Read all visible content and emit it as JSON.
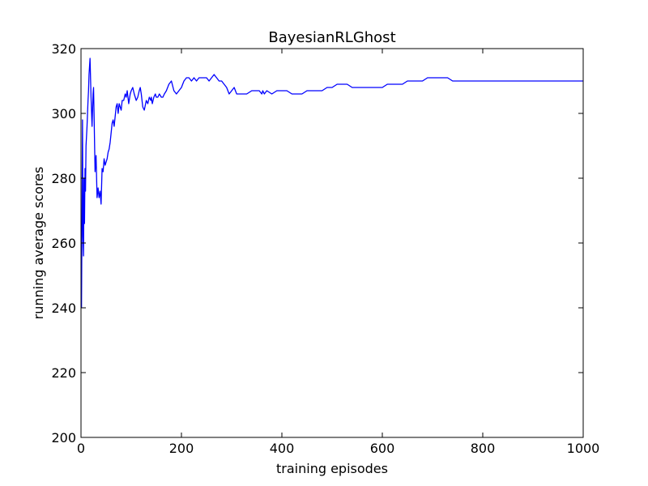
{
  "chart_data": {
    "type": "line",
    "title": "BayesianRLGhost",
    "xlabel": "training episodes",
    "ylabel": "running average scores",
    "xlim": [
      0,
      1000
    ],
    "ylim": [
      200,
      320
    ],
    "xticks": [
      0,
      200,
      400,
      600,
      800,
      1000
    ],
    "yticks": [
      200,
      220,
      240,
      260,
      280,
      300,
      320
    ],
    "grid": false,
    "legend": "none",
    "series": [
      {
        "color": "#0000ff",
        "x": [
          1,
          2,
          3,
          4,
          5,
          6,
          7,
          8,
          9,
          10,
          12,
          14,
          15,
          16,
          18,
          20,
          22,
          24,
          25,
          26,
          28,
          30,
          32,
          34,
          36,
          38,
          40,
          42,
          44,
          46,
          48,
          50,
          52,
          54,
          56,
          58,
          60,
          62,
          64,
          66,
          68,
          70,
          72,
          74,
          76,
          78,
          80,
          82,
          85,
          88,
          90,
          92,
          95,
          98,
          100,
          103,
          106,
          110,
          113,
          116,
          118,
          120,
          123,
          126,
          130,
          133,
          136,
          139,
          140,
          142,
          145,
          148,
          150,
          153,
          156,
          160,
          163,
          166,
          170,
          175,
          180,
          185,
          190,
          195,
          200,
          205,
          210,
          215,
          220,
          225,
          230,
          235,
          240,
          245,
          250,
          255,
          260,
          265,
          270,
          275,
          280,
          285,
          290,
          295,
          300,
          305,
          310,
          315,
          320,
          325,
          330,
          340,
          350,
          355,
          360,
          362,
          365,
          370,
          380,
          390,
          400,
          410,
          420,
          430,
          440,
          450,
          460,
          470,
          480,
          490,
          500,
          510,
          520,
          530,
          540,
          550,
          560,
          570,
          580,
          590,
          600,
          610,
          620,
          630,
          640,
          650,
          660,
          670,
          680,
          690,
          700,
          710,
          720,
          730,
          740,
          750,
          760,
          770,
          780,
          790,
          800,
          810,
          820,
          830,
          840,
          850,
          860,
          870,
          880,
          890,
          900,
          910,
          920,
          930,
          940,
          950,
          960,
          970,
          980,
          990,
          1000
        ],
        "y": [
          240,
          270,
          298,
          262,
          256,
          280,
          266,
          283,
          276,
          290,
          296,
          304,
          307,
          312,
          317,
          305,
          296,
          306,
          308,
          300,
          282,
          287,
          274,
          277,
          274,
          276,
          272,
          283,
          282,
          286,
          284,
          285,
          286,
          288,
          289,
          291,
          294,
          297,
          298,
          296,
          299,
          302,
          303,
          300,
          303,
          302,
          301,
          304,
          304,
          306,
          305,
          307,
          303,
          306,
          307,
          308,
          306,
          304,
          305,
          307,
          308,
          306,
          302,
          301,
          304,
          303,
          305,
          304,
          305,
          303,
          305,
          306,
          305,
          305,
          306,
          305,
          305,
          306,
          307,
          309,
          310,
          307,
          306,
          307,
          308,
          310,
          311,
          311,
          310,
          311,
          310,
          311,
          311,
          311,
          311,
          310,
          311,
          312,
          311,
          310,
          310,
          309,
          308,
          306,
          307,
          308,
          306,
          306,
          306,
          306,
          306,
          307,
          307,
          307,
          306,
          307,
          306,
          307,
          306,
          307,
          307,
          307,
          306,
          306,
          306,
          307,
          307,
          307,
          307,
          308,
          308,
          309,
          309,
          309,
          308,
          308,
          308,
          308,
          308,
          308,
          308,
          309,
          309,
          309,
          309,
          310,
          310,
          310,
          310,
          311,
          311,
          311,
          311,
          311,
          310,
          310,
          310,
          310,
          310,
          310,
          310,
          310,
          310,
          310,
          310,
          310,
          310,
          310,
          310,
          310,
          310,
          310,
          310,
          310,
          310,
          310,
          310,
          310,
          310,
          310,
          310
        ]
      }
    ]
  }
}
